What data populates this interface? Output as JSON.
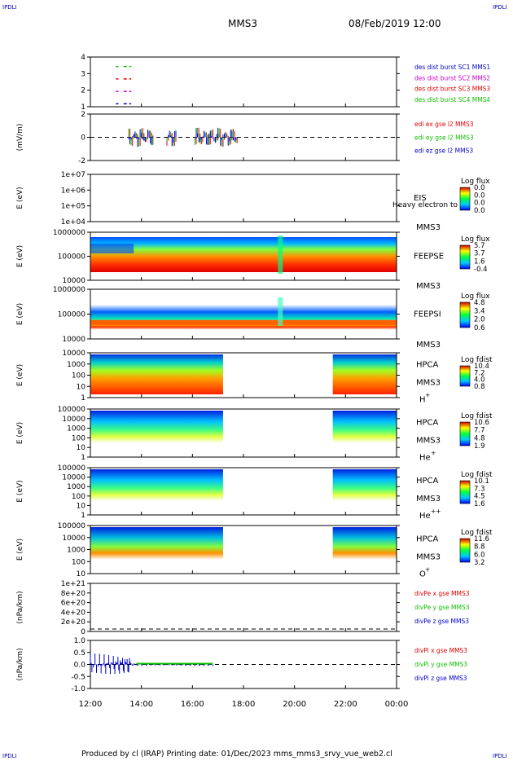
{
  "corners": {
    "tl": "IPDLI",
    "tr": "IPDLI",
    "bl": "IPDLI",
    "br": "IPDLI"
  },
  "header": {
    "spacecraft": "MMS3",
    "date": "08/Feb/2019 12:00"
  },
  "footer": {
    "text": "Produced by cl (IRAP)   Printing date: 01/Dec/2023   mms_mms3_srvy_vue_web2.cl"
  },
  "colors": {
    "red": "#e00000",
    "green": "#10c000",
    "blue": "#0000cc",
    "magenta": "#cc00cc",
    "flux_low": "#0000ff",
    "flux_high": "#cc0000"
  },
  "time_axis": {
    "ticks": [
      "12:00",
      "14:00",
      "16:00",
      "18:00",
      "20:00",
      "22:00",
      "00:00"
    ],
    "range_hours": [
      12,
      24
    ]
  },
  "chart_data": [
    {
      "type": "line",
      "title": "",
      "ylabel": "",
      "yticks": [
        "4",
        "3",
        "2",
        "1"
      ],
      "legend": [
        {
          "text": "des dist burst SC1 MMS1",
          "color": "#0000cc"
        },
        {
          "text": "des dist burst SC2 MMS2",
          "color": "#cc00cc"
        },
        {
          "text": "des dist burst SC3 MMS3",
          "color": "#e00000"
        },
        {
          "text": "des dist burst SC4 MMS4",
          "color": "#10c000"
        }
      ],
      "series": [
        {
          "name": "des dist burst SC1 MMS1",
          "level": 1,
          "intervals": [
            [
              13.0,
              13.1
            ],
            [
              13.3,
              13.6
            ]
          ]
        },
        {
          "name": "des dist burst SC2 MMS2",
          "level": 2,
          "intervals": [
            [
              13.0,
              13.1
            ],
            [
              13.3,
              13.6
            ]
          ]
        },
        {
          "name": "des dist burst SC3 MMS3",
          "level": 3,
          "intervals": [
            [
              13.0,
              13.1
            ],
            [
              13.3,
              13.6
            ]
          ]
        },
        {
          "name": "des dist burst SC4 MMS4",
          "level": 4,
          "intervals": [
            [
              13.0,
              13.1
            ],
            [
              13.3,
              13.6
            ]
          ]
        }
      ]
    },
    {
      "type": "line",
      "ylabel": "(mV/m)",
      "yticks": [
        "2",
        "0",
        "-2"
      ],
      "legend": [
        {
          "text": "edi ex gse l2 MMS3",
          "color": "#e00000"
        },
        {
          "text": "edi ey gse l2 MMS3",
          "color": "#10c000"
        },
        {
          "text": "edi ez gse l2 MMS3",
          "color": "#0000cc"
        }
      ],
      "active_intervals": [
        [
          13.5,
          14.5
        ],
        [
          15.0,
          15.4
        ],
        [
          16.1,
          17.8
        ]
      ]
    },
    {
      "type": "heatmap",
      "ylabel": "E (eV)",
      "yticks": [
        "1e+07",
        "1e+06",
        "1e+05",
        "1e+04"
      ],
      "labels": [
        "EIS",
        "MMS3"
      ],
      "overlay_text": "Heavy electron to",
      "colorbar": {
        "title": "Log flux",
        "ticks": [
          "0.0",
          "0.0",
          "0.0",
          "0.0"
        ]
      }
    },
    {
      "type": "heatmap",
      "ylabel": "E (eV)",
      "yticks": [
        "1000000",
        "100000",
        "10000"
      ],
      "labels": [
        "FEEPSE",
        "MMS3"
      ],
      "colorbar": {
        "title": "Log flux",
        "ticks": [
          "5.7",
          "3.7",
          "1.6",
          "-0.4"
        ]
      }
    },
    {
      "type": "heatmap",
      "ylabel": "E (eV)",
      "yticks": [
        "1000000",
        "100000",
        "10000"
      ],
      "labels": [
        "FEEPSI",
        "MMS3"
      ],
      "colorbar": {
        "title": "Log flux",
        "ticks": [
          "4.8",
          "3.4",
          "2.0",
          "0.6"
        ]
      }
    },
    {
      "type": "heatmap",
      "ylabel": "E (eV)",
      "yticks": [
        "10000",
        "1000",
        "100",
        "10",
        "1"
      ],
      "labels": [
        "HPCA",
        "MMS3"
      ],
      "species": "H",
      "charge": "+",
      "data_intervals": [
        [
          12.0,
          17.2
        ],
        [
          21.5,
          24.0
        ]
      ],
      "colorbar": {
        "title": "Log fdist",
        "ticks": [
          "10.4",
          "7.2",
          "4.0",
          "0.8"
        ]
      }
    },
    {
      "type": "heatmap",
      "ylabel": "E (eV)",
      "yticks": [
        "100000",
        "10000",
        "1000",
        "100",
        "10",
        "1"
      ],
      "labels": [
        "HPCA",
        "MMS3"
      ],
      "species": "He",
      "charge": "+",
      "data_intervals": [
        [
          12.0,
          17.2
        ],
        [
          21.5,
          24.0
        ]
      ],
      "colorbar": {
        "title": "Log fdist",
        "ticks": [
          "10.6",
          "7.7",
          "4.8",
          "1.9"
        ]
      }
    },
    {
      "type": "heatmap",
      "ylabel": "E (eV)",
      "yticks": [
        "100000",
        "10000",
        "1000",
        "100",
        "10",
        "1"
      ],
      "labels": [
        "HPCA",
        "MMS3"
      ],
      "species": "He",
      "charge": "++",
      "data_intervals": [
        [
          12.0,
          17.2
        ],
        [
          21.5,
          24.0
        ]
      ],
      "colorbar": {
        "title": "Log fdist",
        "ticks": [
          "10.1",
          "7.3",
          "4.5",
          "1.6"
        ]
      }
    },
    {
      "type": "heatmap",
      "ylabel": "E (eV)",
      "yticks": [
        "100000",
        "10000",
        "1000",
        "100",
        "10"
      ],
      "labels": [
        "HPCA",
        "MMS3"
      ],
      "species": "O",
      "charge": "+",
      "data_intervals": [
        [
          12.0,
          17.2
        ],
        [
          21.5,
          24.0
        ]
      ],
      "colorbar": {
        "title": "Log fdist",
        "ticks": [
          "11.6",
          "8.8",
          "6.0",
          "3.2"
        ]
      }
    },
    {
      "type": "line",
      "ylabel": "(nPa/km)",
      "yticks": [
        "1e+21",
        "8e+20",
        "6e+20",
        "4e+20",
        "2e+20",
        "0"
      ],
      "legend": [
        {
          "text": "divPe x gse MMS3",
          "color": "#e00000"
        },
        {
          "text": "divPe y gse MMS3",
          "color": "#10c000"
        },
        {
          "text": "divPe z gse MMS3",
          "color": "#0000cc"
        }
      ]
    },
    {
      "type": "line",
      "ylabel": "(nPa/km)",
      "yticks": [
        "1.0",
        "0.5",
        "0.0",
        "-0.5",
        "-1.0"
      ],
      "legend": [
        {
          "text": "divPi x gse MMS3",
          "color": "#e00000"
        },
        {
          "text": "divPi y gse MMS3",
          "color": "#10c000"
        },
        {
          "text": "divPi z gse MMS3",
          "color": "#0000cc"
        }
      ],
      "active_interval": [
        12.0,
        16.8
      ]
    }
  ]
}
